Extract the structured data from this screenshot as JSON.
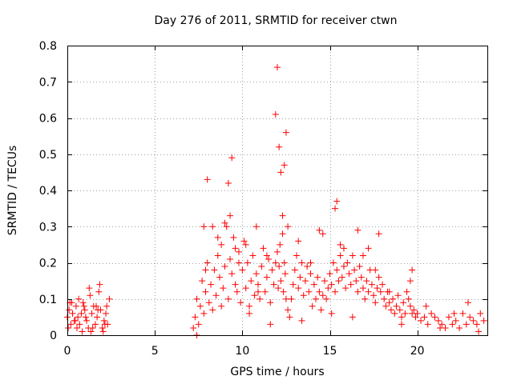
{
  "chart_data": {
    "type": "scatter",
    "title": "Day 276 of 2011, SRMTID for receiver ctwn",
    "xlabel": "GPS time / hours",
    "ylabel": "SRMTID / TECUs",
    "xlim": [
      0,
      24
    ],
    "ylim": [
      0,
      0.8
    ],
    "xticks": [
      0,
      5,
      10,
      15,
      20
    ],
    "yticks": [
      0,
      0.1,
      0.2,
      0.3,
      0.4,
      0.5,
      0.6,
      0.7,
      0.8
    ],
    "xtick_labels": [
      "0",
      "5",
      "10",
      "15",
      "20"
    ],
    "ytick_labels": [
      "0",
      "0.1",
      "0.2",
      "0.3",
      "0.4",
      "0.5",
      "0.6",
      "0.7",
      "0.8"
    ],
    "grid": true,
    "marker": "+",
    "color": "#ff0000",
    "series": [
      {
        "name": "SRMTID",
        "x": [
          0.0,
          0.1,
          0.2,
          0.3,
          0.4,
          0.5,
          0.6,
          0.7,
          0.8,
          0.9,
          1.0,
          1.1,
          1.2,
          1.3,
          1.4,
          1.5,
          1.6,
          1.7,
          1.8,
          1.9,
          2.0,
          2.1,
          2.2,
          2.3,
          2.4,
          0.05,
          0.25,
          0.45,
          0.65,
          0.85,
          1.05,
          1.25,
          1.45,
          1.65,
          1.85,
          2.05,
          2.25,
          7.2,
          7.3,
          7.4,
          7.5,
          7.6,
          7.7,
          7.8,
          7.9,
          8.0,
          8.1,
          8.2,
          8.3,
          8.4,
          8.5,
          8.6,
          8.7,
          8.8,
          8.9,
          9.0,
          9.1,
          9.2,
          9.3,
          9.4,
          9.5,
          9.6,
          9.7,
          9.8,
          9.9,
          10.0,
          10.1,
          10.2,
          10.3,
          10.4,
          10.5,
          10.6,
          10.7,
          10.8,
          10.9,
          11.0,
          11.1,
          11.2,
          11.3,
          11.4,
          11.5,
          11.6,
          11.7,
          11.8,
          11.9,
          12.0,
          12.05,
          12.1,
          12.15,
          12.2,
          12.3,
          12.35,
          12.4,
          12.45,
          12.5,
          12.6,
          12.7,
          12.8,
          12.9,
          13.0,
          13.1,
          13.2,
          13.3,
          13.4,
          13.5,
          13.6,
          13.7,
          13.8,
          13.9,
          14.0,
          14.1,
          14.2,
          14.3,
          14.4,
          14.5,
          14.6,
          14.7,
          14.8,
          14.9,
          15.0,
          15.1,
          15.2,
          15.3,
          15.4,
          15.5,
          15.6,
          15.7,
          15.8,
          15.9,
          16.0,
          16.1,
          16.2,
          16.3,
          16.4,
          16.5,
          16.6,
          16.7,
          16.8,
          16.9,
          17.0,
          17.1,
          17.2,
          17.3,
          17.4,
          17.5,
          17.6,
          17.7,
          17.8,
          17.9,
          18.0,
          18.1,
          18.2,
          18.3,
          18.4,
          18.5,
          18.6,
          18.7,
          18.8,
          18.9,
          19.0,
          19.1,
          19.2,
          19.3,
          19.4,
          19.5,
          19.6,
          19.7,
          19.8,
          19.9,
          20.0,
          20.2,
          20.4,
          20.6,
          20.8,
          21.0,
          21.2,
          21.4,
          21.6,
          21.8,
          22.0,
          22.2,
          22.4,
          22.6,
          22.8,
          23.0,
          23.2,
          23.4,
          23.6,
          23.8,
          7.8,
          8.0,
          8.6,
          9.0,
          9.2,
          9.4,
          9.6,
          10.2,
          10.8,
          11.4,
          11.9,
          12.0,
          12.1,
          12.2,
          12.3,
          12.4,
          12.5,
          13.2,
          14.4,
          15.3,
          15.4,
          15.8,
          16.6,
          17.2,
          17.8,
          19.6,
          0.15,
          0.55,
          0.95,
          1.35,
          1.75,
          2.15,
          7.4,
          7.9,
          8.3,
          8.8,
          9.3,
          9.8,
          10.4,
          10.9,
          11.6,
          12.6,
          13.4,
          13.9,
          14.6,
          15.1,
          15.6,
          16.3,
          16.9,
          17.6,
          18.4,
          19.1,
          19.7,
          20.5,
          21.3,
          22.1,
          22.9,
          23.5
        ],
        "y": [
          0.05,
          0.07,
          0.03,
          0.06,
          0.04,
          0.08,
          0.05,
          0.03,
          0.06,
          0.09,
          0.07,
          0.04,
          0.02,
          0.11,
          0.06,
          0.08,
          0.03,
          0.05,
          0.12,
          0.07,
          0.02,
          0.04,
          0.06,
          0.03,
          0.1,
          0.02,
          0.09,
          0.04,
          0.1,
          0.01,
          0.05,
          0.13,
          0.02,
          0.08,
          0.14,
          0.01,
          0.08,
          0.02,
          0.05,
          0.1,
          0.03,
          0.08,
          0.15,
          0.06,
          0.12,
          0.2,
          0.09,
          0.14,
          0.07,
          0.18,
          0.11,
          0.22,
          0.16,
          0.25,
          0.13,
          0.19,
          0.3,
          0.1,
          0.21,
          0.17,
          0.27,
          0.14,
          0.12,
          0.23,
          0.09,
          0.18,
          0.26,
          0.13,
          0.2,
          0.08,
          0.15,
          0.22,
          0.11,
          0.17,
          0.14,
          0.1,
          0.19,
          0.24,
          0.12,
          0.16,
          0.21,
          0.09,
          0.18,
          0.14,
          0.2,
          0.23,
          0.13,
          0.19,
          0.25,
          0.15,
          0.28,
          0.12,
          0.2,
          0.17,
          0.1,
          0.07,
          0.05,
          0.1,
          0.14,
          0.18,
          0.22,
          0.13,
          0.16,
          0.2,
          0.11,
          0.15,
          0.19,
          0.12,
          0.17,
          0.08,
          0.14,
          0.1,
          0.16,
          0.12,
          0.07,
          0.11,
          0.15,
          0.1,
          0.13,
          0.17,
          0.14,
          0.2,
          0.12,
          0.18,
          0.15,
          0.22,
          0.16,
          0.19,
          0.13,
          0.2,
          0.17,
          0.14,
          0.22,
          0.18,
          0.15,
          0.12,
          0.19,
          0.16,
          0.13,
          0.1,
          0.15,
          0.12,
          0.18,
          0.14,
          0.11,
          0.09,
          0.13,
          0.16,
          0.12,
          0.14,
          0.1,
          0.08,
          0.12,
          0.09,
          0.07,
          0.1,
          0.06,
          0.08,
          0.11,
          0.07,
          0.05,
          0.09,
          0.06,
          0.12,
          0.1,
          0.08,
          0.06,
          0.07,
          0.05,
          0.06,
          0.04,
          0.05,
          0.03,
          0.06,
          0.05,
          0.04,
          0.03,
          0.02,
          0.05,
          0.03,
          0.04,
          0.02,
          0.06,
          0.03,
          0.05,
          0.04,
          0.03,
          0.06,
          0.04,
          0.3,
          0.43,
          0.27,
          0.31,
          0.42,
          0.49,
          0.24,
          0.25,
          0.3,
          0.22,
          0.61,
          0.74,
          0.52,
          0.45,
          0.33,
          0.47,
          0.56,
          0.26,
          0.29,
          0.35,
          0.37,
          0.24,
          0.29,
          0.24,
          0.28,
          0.15,
          0.09,
          0.02,
          0.08,
          0.01,
          0.07,
          0.03,
          0.0,
          0.18,
          0.3,
          0.08,
          0.33,
          0.2,
          0.06,
          0.12,
          0.03,
          0.3,
          0.04,
          0.2,
          0.28,
          0.06,
          0.25,
          0.05,
          0.22,
          0.18,
          0.12,
          0.03,
          0.18,
          0.08,
          0.02,
          0.06,
          0.09,
          0.01
        ]
      }
    ]
  }
}
